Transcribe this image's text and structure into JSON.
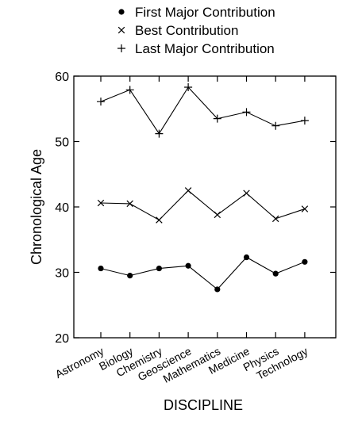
{
  "chart_data": {
    "type": "line",
    "title": "",
    "xlabel": "DISCIPLINE",
    "ylabel": "Chronological Age",
    "ylim": [
      20,
      60
    ],
    "yticks": [
      20,
      30,
      40,
      50,
      60
    ],
    "grid": false,
    "legend_position": "top",
    "categories": [
      "Astronomy",
      "Biology",
      "Chemistry",
      "Geoscience",
      "Mathematics",
      "Medicine",
      "Physics",
      "Technology"
    ],
    "series": [
      {
        "name": "First Major Contribution",
        "marker": "dot",
        "values": [
          30.6,
          29.5,
          30.6,
          31.0,
          27.4,
          32.3,
          29.8,
          31.6
        ]
      },
      {
        "name": "Best Contribution",
        "marker": "x",
        "values": [
          40.6,
          40.5,
          38.0,
          42.5,
          38.8,
          42.1,
          38.2,
          39.7
        ]
      },
      {
        "name": "Last Major Contribution",
        "marker": "plus",
        "values": [
          56.1,
          57.9,
          51.2,
          58.3,
          53.5,
          54.5,
          52.4,
          53.2
        ]
      }
    ]
  }
}
